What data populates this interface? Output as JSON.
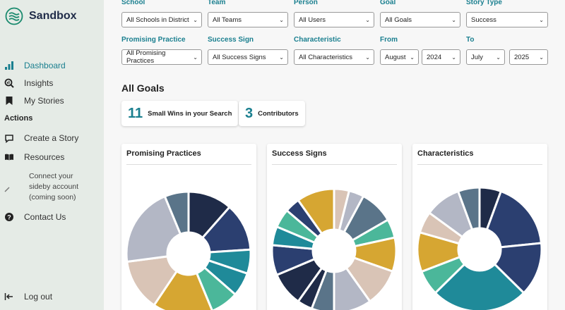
{
  "brand": {
    "name": "Sandbox"
  },
  "nav": {
    "dashboard": "Dashboard",
    "insights": "Insights",
    "my_stories": "My Stories",
    "actions_heading": "Actions",
    "create_story": "Create a Story",
    "resources": "Resources",
    "connect": "Connect your sideby account (coming soon)",
    "contact": "Contact Us",
    "logout": "Log out"
  },
  "filters": {
    "school": {
      "label": "School",
      "value": "All Schools in District"
    },
    "team": {
      "label": "Team",
      "value": "All Teams"
    },
    "person": {
      "label": "Person",
      "value": "All Users"
    },
    "goal": {
      "label": "Goal",
      "value": "All Goals"
    },
    "story_type": {
      "label": "Story Type",
      "value": "Success"
    },
    "practice": {
      "label": "Promising Practice",
      "value": "All Promising Practices"
    },
    "success_sign": {
      "label": "Success Sign",
      "value": "All Success Signs"
    },
    "characteristic": {
      "label": "Characteristic",
      "value": "All Characteristics"
    },
    "from": {
      "label": "From",
      "month": "August",
      "year": "2024"
    },
    "to": {
      "label": "To",
      "month": "July",
      "year": "2025"
    }
  },
  "main": {
    "title": "All Goals",
    "stats": {
      "wins_count": "11",
      "wins_label": "Small Wins in your Search",
      "contributors_count": "3",
      "contributors_label": "Contributors"
    }
  },
  "colors": {
    "accent": "#1a7f8f",
    "navy": "#1f2b48",
    "blue": "#2b3f70",
    "teal": "#1f8a99",
    "mint": "#4bb79a",
    "gold": "#d6a632",
    "sand": "#d9c4b6",
    "gray": "#b3b7c5",
    "slate": "#5a7489"
  },
  "chart_data": [
    {
      "type": "pie",
      "title": "Promising Practices",
      "values": [
        11,
        12,
        6,
        6,
        7,
        15,
        13,
        20,
        6
      ],
      "colors": [
        "#1f2b48",
        "#2b3f70",
        "#1f8a99",
        "#1f8a99",
        "#4bb79a",
        "#d6a632",
        "#d9c4b6",
        "#b3b7c5",
        "#5a7489"
      ]
    },
    {
      "type": "pie",
      "title": "Success Signs",
      "values": [
        4,
        4,
        9,
        5,
        9,
        10,
        10,
        6,
        4,
        9,
        8,
        5,
        5,
        4,
        10
      ],
      "colors": [
        "#d9c4b6",
        "#b3b7c5",
        "#5a7489",
        "#4bb79a",
        "#d6a632",
        "#d9c4b6",
        "#b3b7c5",
        "#5a7489",
        "#1f2b48",
        "#1f2b48",
        "#2b3f70",
        "#1f8a99",
        "#4bb79a",
        "#2b3f70",
        "#d6a632"
      ]
    },
    {
      "type": "pie",
      "title": "Characteristics",
      "values": [
        6,
        19,
        15,
        27,
        7,
        11,
        6,
        10,
        6
      ],
      "colors": [
        "#1f2b48",
        "#2b3f70",
        "#2b3f70",
        "#1f8a99",
        "#4bb79a",
        "#d6a632",
        "#d9c4b6",
        "#b3b7c5",
        "#5a7489"
      ]
    }
  ]
}
